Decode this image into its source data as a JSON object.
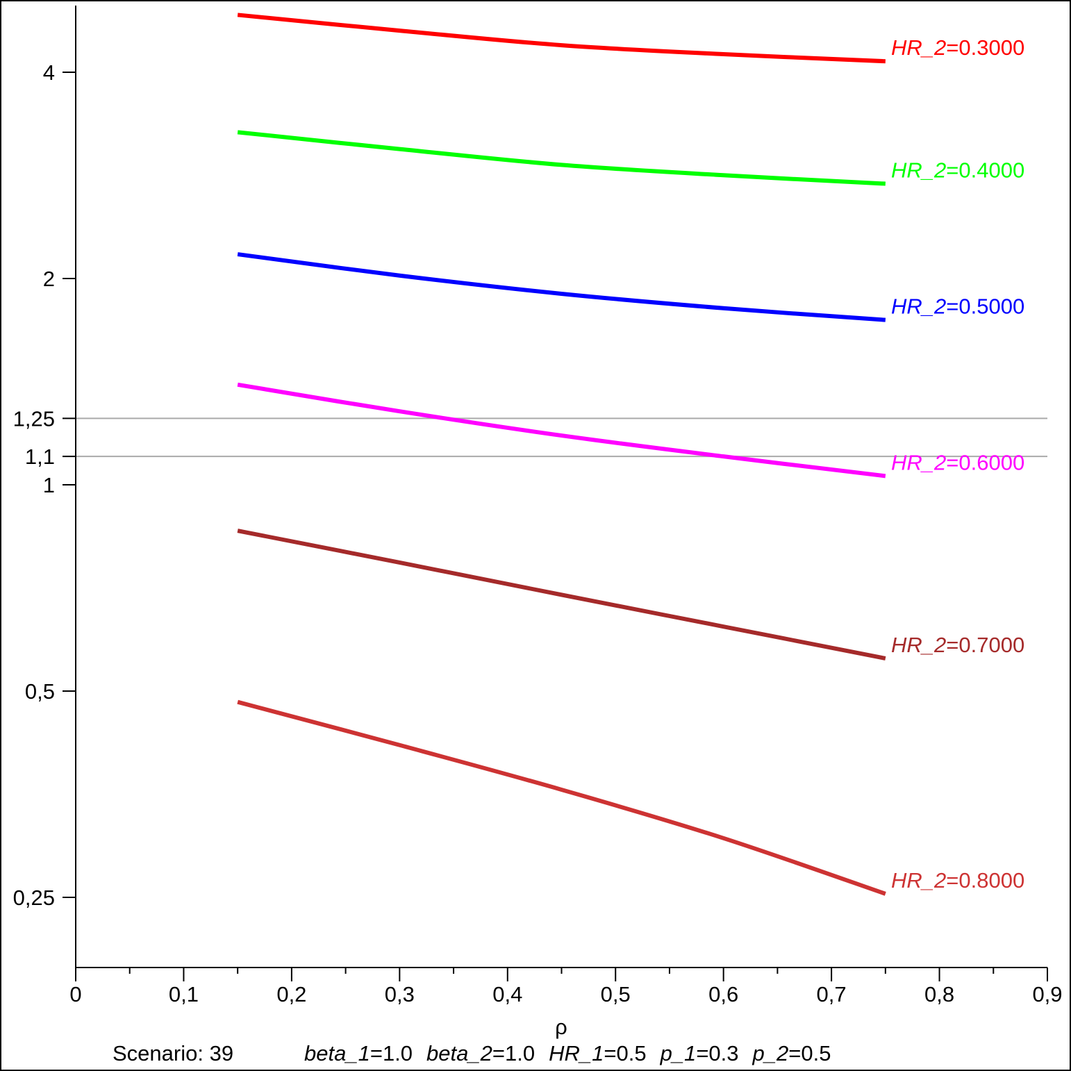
{
  "chart_data": {
    "type": "line",
    "title": "",
    "xlabel": "ρ",
    "ylabel": "",
    "xlim": [
      0,
      0.9
    ],
    "ylim": [
      0.2,
      5.3
    ],
    "yscale": "log2",
    "x_ticks": [
      0,
      0.1,
      0.2,
      0.3,
      0.4,
      0.5,
      0.6,
      0.7,
      0.8,
      0.9
    ],
    "x_tick_labels": [
      "0",
      "0,1",
      "0,2",
      "0,3",
      "0,4",
      "0,5",
      "0,6",
      "0,7",
      "0,8",
      "0,9"
    ],
    "y_ticks": [
      0.25,
      0.5,
      1,
      1.1,
      1.25,
      2,
      4
    ],
    "y_tick_labels": [
      "0,25",
      "0,5",
      "1",
      "1,1",
      "1,25",
      "2",
      "4"
    ],
    "reference_lines": [
      1.25,
      1.1
    ],
    "reference_line_color": "#aaaaaa",
    "x": [
      0.15,
      0.3,
      0.45,
      0.6,
      0.75
    ],
    "series": [
      {
        "name": "HR_2",
        "value": "0.3000",
        "color": "#ff0000",
        "values": [
          4.85,
          4.6,
          4.38,
          4.25,
          4.15
        ]
      },
      {
        "name": "HR_2",
        "value": "0.4000",
        "color": "#00ff00",
        "values": [
          3.27,
          3.09,
          2.93,
          2.83,
          2.75
        ]
      },
      {
        "name": "HR_2",
        "value": "0.5000",
        "color": "#0000ff",
        "values": [
          2.17,
          2.02,
          1.9,
          1.81,
          1.74
        ]
      },
      {
        "name": "HR_2",
        "value": "0.6000",
        "color": "#ff00ff",
        "values": [
          1.4,
          1.28,
          1.18,
          1.1,
          1.03
        ]
      },
      {
        "name": "HR_2",
        "value": "0.7000",
        "color": "#a52a2a",
        "values": [
          0.857,
          0.77,
          0.691,
          0.621,
          0.558
        ]
      },
      {
        "name": "HR_2",
        "value": "0.8000",
        "color": "#cd3333",
        "values": [
          0.482,
          0.417,
          0.359,
          0.305,
          0.253
        ]
      }
    ],
    "footer": {
      "scenario": "Scenario: 39",
      "params": [
        {
          "name": "beta_1",
          "value": "1.0"
        },
        {
          "name": "beta_2",
          "value": "1.0"
        },
        {
          "name": "HR_1",
          "value": "0.5"
        },
        {
          "name": "p_1",
          "value": "0.3"
        },
        {
          "name": "p_2",
          "value": "0.5"
        }
      ]
    }
  }
}
